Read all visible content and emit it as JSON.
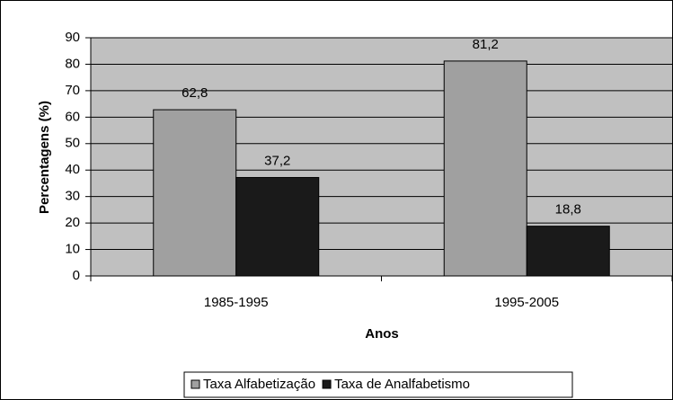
{
  "chart_data": {
    "type": "bar",
    "categories": [
      "1985-1995",
      "1995-2005"
    ],
    "series": [
      {
        "name": "Taxa Alfabetização",
        "color": "#a0a0a0",
        "values": [
          62.8,
          81.2
        ],
        "value_labels": [
          "62,8",
          "81,2"
        ]
      },
      {
        "name": "Taxa de Analfabetismo",
        "color": "#1a1a1a",
        "values": [
          37.2,
          18.8
        ],
        "value_labels": [
          "37,2",
          "18,8"
        ]
      }
    ],
    "ylabel": "Percentagens (%)",
    "xlabel": "Anos",
    "ylim": [
      0,
      90
    ],
    "yticks": [
      0,
      10,
      20,
      30,
      40,
      50,
      60,
      70,
      80,
      90
    ],
    "grid": true,
    "legend": "bottom",
    "plot_background": "#c0c0c0"
  }
}
